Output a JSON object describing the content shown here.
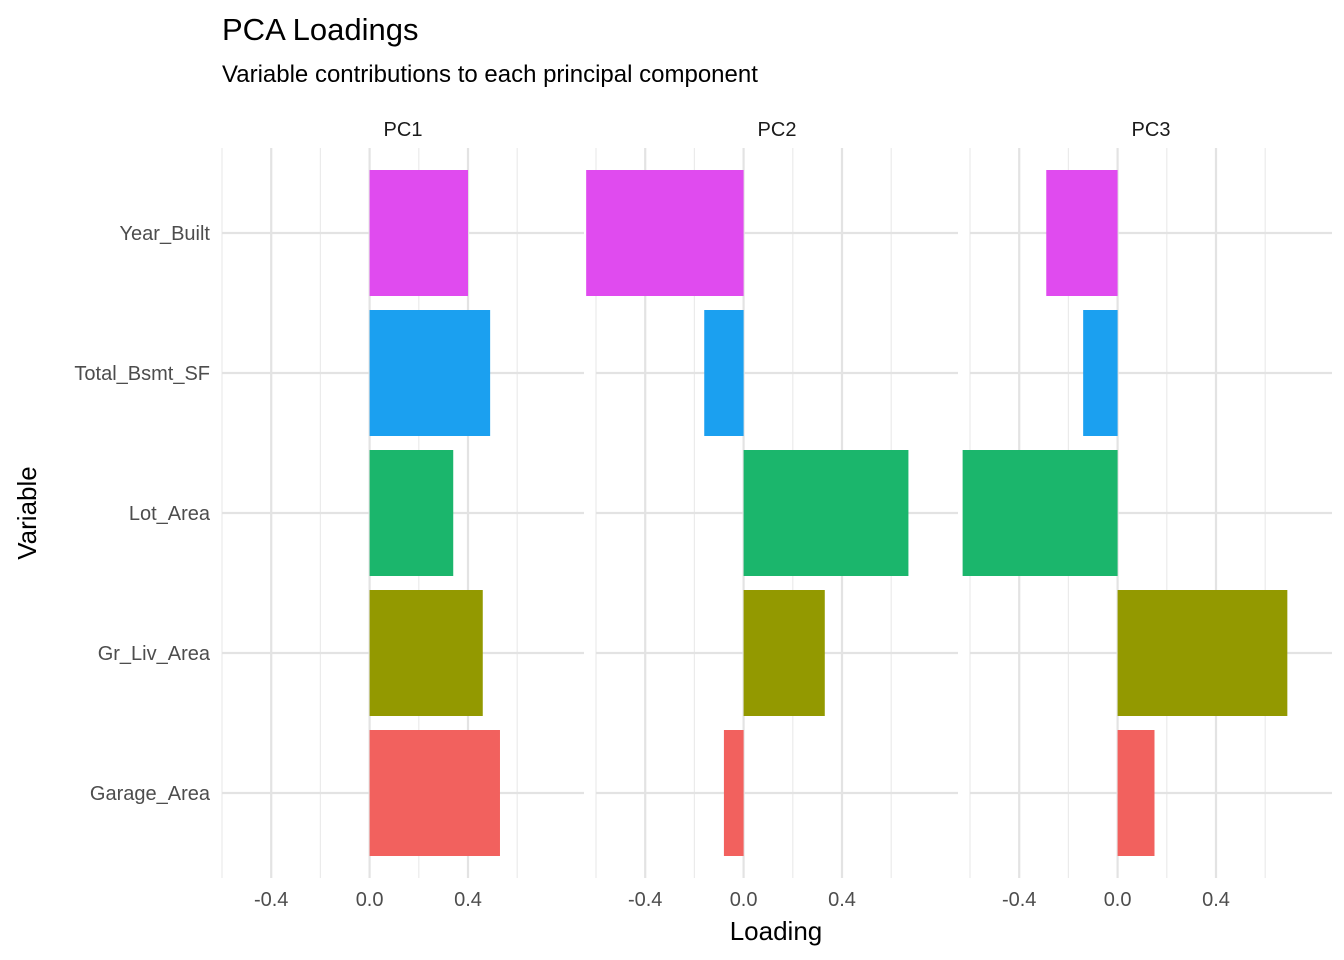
{
  "chart_data": {
    "type": "bar",
    "title": "PCA Loadings",
    "subtitle": "Variable contributions to each principal component",
    "xlabel": "Loading",
    "ylabel": "Variable",
    "xlim": [
      -0.6,
      0.7
    ],
    "x_ticks": [
      -0.4,
      0.0,
      0.4
    ],
    "x_tick_labels": [
      "-0.4",
      "0.0",
      "0.4"
    ],
    "grid": true,
    "legend": "none",
    "categories": [
      "Year_Built",
      "Total_Bsmt_SF",
      "Lot_Area",
      "Gr_Liv_Area",
      "Garage_Area"
    ],
    "colors": {
      "Year_Built": "#E04BEF",
      "Total_Bsmt_SF": "#1BA0F0",
      "Lot_Area": "#1BB66C",
      "Gr_Liv_Area": "#939900",
      "Garage_Area": "#F2615E"
    },
    "panels": [
      {
        "name": "PC1",
        "values": [
          0.4,
          0.49,
          0.34,
          0.46,
          0.53
        ]
      },
      {
        "name": "PC2",
        "values": [
          -0.64,
          -0.16,
          0.67,
          0.33,
          -0.08
        ]
      },
      {
        "name": "PC3",
        "values": [
          -0.29,
          -0.14,
          -0.63,
          0.69,
          0.15
        ]
      }
    ]
  }
}
